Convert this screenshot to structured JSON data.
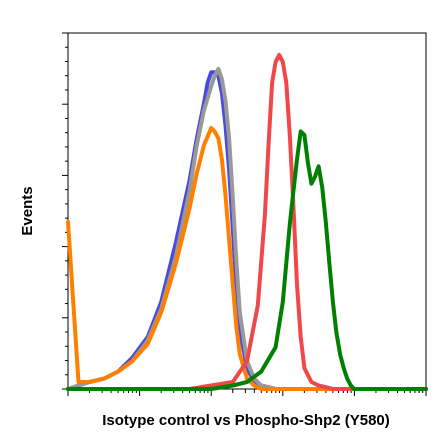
{
  "chart_data": {
    "type": "line",
    "title": "",
    "xlabel": "Isotype control vs Phospho-Shp2 (Y580)",
    "ylabel": "Events",
    "x_scale": "log",
    "xlim": [
      0.01,
      1000
    ],
    "ylim": [
      0,
      100
    ],
    "grid": false,
    "legend": "none",
    "series": [
      {
        "color": "#4a4adf",
        "x": [
          0.01,
          0.014,
          0.02,
          0.032,
          0.05,
          0.079,
          0.13,
          0.2,
          0.32,
          0.5,
          0.63,
          0.79,
          0.89,
          1.0,
          1.12,
          1.26,
          1.41,
          1.58,
          1.78,
          2.0,
          2.24,
          2.51,
          3.16,
          3.98,
          5.0,
          7.9,
          10,
          100,
          1000
        ],
        "y": [
          0,
          1,
          2,
          3,
          5,
          9,
          15,
          25,
          42,
          60,
          72,
          82,
          88,
          91,
          91,
          90,
          85,
          76,
          63,
          46,
          30,
          17,
          6,
          2,
          1,
          0,
          0,
          0,
          0
        ]
      },
      {
        "color": "#999999",
        "x": [
          0.01,
          0.014,
          0.02,
          0.032,
          0.05,
          0.079,
          0.13,
          0.2,
          0.32,
          0.5,
          0.63,
          0.79,
          1.0,
          1.12,
          1.26,
          1.41,
          1.58,
          1.78,
          2.0,
          2.24,
          2.51,
          3.16,
          3.98,
          5.0,
          7.9,
          10,
          100,
          1000
        ],
        "y": [
          0,
          1,
          2,
          3,
          5,
          8,
          14,
          23,
          38,
          57,
          70,
          80,
          87,
          90,
          92,
          89,
          83,
          72,
          55,
          37,
          22,
          8,
          3,
          1,
          0,
          0,
          0,
          0
        ]
      },
      {
        "color": "#ff8000",
        "x": [
          0.01,
          0.014,
          0.02,
          0.032,
          0.05,
          0.079,
          0.13,
          0.2,
          0.32,
          0.5,
          0.63,
          0.79,
          1.0,
          1.12,
          1.26,
          1.41,
          1.58,
          1.78,
          2.0,
          2.24,
          2.51,
          3.16,
          3.98,
          5.0,
          7.9,
          10,
          100,
          1000
        ],
        "y": [
          48,
          2,
          2,
          3,
          5,
          8,
          13,
          22,
          36,
          52,
          62,
          70,
          75,
          74,
          72,
          66,
          56,
          43,
          30,
          18,
          10,
          3,
          1,
          0,
          0,
          0,
          0,
          0
        ]
      },
      {
        "color": "#f04848",
        "x": [
          0.01,
          0.5,
          1.0,
          2.0,
          3.16,
          4.47,
          5.62,
          6.31,
          7.08,
          7.94,
          8.91,
          10.0,
          11.2,
          12.6,
          14.1,
          15.8,
          17.8,
          20.0,
          25.1,
          31.6,
          50.1,
          100,
          1000
        ],
        "y": [
          0,
          0,
          1,
          2,
          8,
          24,
          50,
          70,
          88,
          94,
          96,
          94,
          88,
          72,
          52,
          30,
          15,
          6,
          2,
          1,
          0,
          0,
          0
        ]
      },
      {
        "color": "#008000",
        "x": [
          0.01,
          1.0,
          2.0,
          3.16,
          5.0,
          7.94,
          10.0,
          12.6,
          15.8,
          17.8,
          20.0,
          22.4,
          25.1,
          28.2,
          31.6,
          35.5,
          39.8,
          44.7,
          50.1,
          56.2,
          63.1,
          70.8,
          79.4,
          89.1,
          100,
          141,
          1000
        ],
        "y": [
          0,
          0,
          1,
          2,
          5,
          12,
          25,
          48,
          66,
          74,
          73,
          65,
          59,
          61,
          64,
          58,
          48,
          36,
          25,
          16,
          10,
          6,
          3,
          1,
          0,
          0,
          0
        ]
      }
    ]
  }
}
